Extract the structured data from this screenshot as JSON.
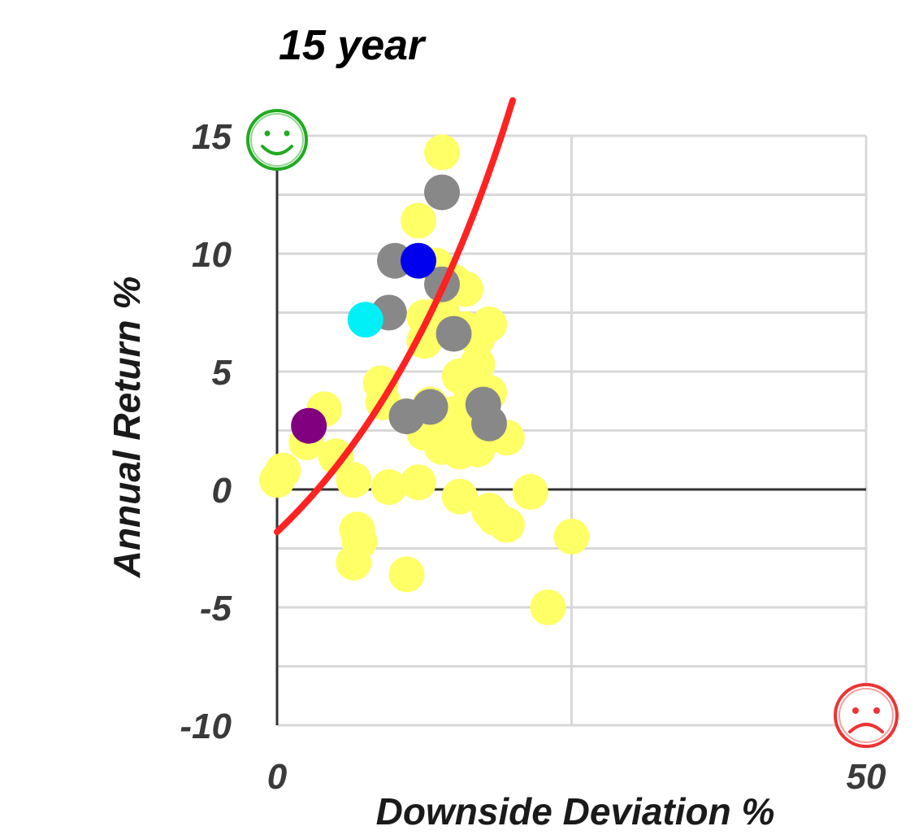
{
  "chart_data": {
    "type": "scatter",
    "title": "15 year",
    "xlabel": "Downside Deviation %",
    "ylabel": "Annual Return %",
    "xlim": [
      0,
      50
    ],
    "ylim": [
      -10,
      15
    ],
    "x_ticks": [
      "0",
      "50"
    ],
    "y_ticks": [
      "15",
      "10",
      "5",
      "0",
      "-5",
      "-10"
    ],
    "grid": true,
    "legend": "none",
    "icons": {
      "top_left": "smiley-face-icon",
      "bottom_right": "frowny-face-icon"
    },
    "colors": {
      "others": "#ffff66",
      "comparison": "#888888",
      "highlight_blue": "#0000ee",
      "highlight_cyan": "#00f0f8",
      "highlight_purple": "#800080",
      "curve": "#ff2222",
      "smiley": "#22aa22",
      "frowny": "#ee3333"
    },
    "series": [
      {
        "color_key": "others",
        "points": [
          [
            14,
            14.3
          ],
          [
            12,
            11.4
          ],
          [
            13.5,
            9.5
          ],
          [
            15,
            8.8
          ],
          [
            16,
            8.5
          ],
          [
            14,
            7.5
          ],
          [
            12.5,
            7.3
          ],
          [
            16,
            6.8
          ],
          [
            18,
            7
          ],
          [
            17,
            6.4
          ],
          [
            12.5,
            6.3
          ],
          [
            17,
            5.3
          ],
          [
            15.5,
            4.8
          ],
          [
            8.8,
            4.5
          ],
          [
            16.5,
            4.2
          ],
          [
            18,
            4.1
          ],
          [
            9,
            3.7
          ],
          [
            13,
            3.6
          ],
          [
            4,
            3.4
          ],
          [
            15,
            3.2
          ],
          [
            11,
            3.1
          ],
          [
            13,
            2.9
          ],
          [
            17,
            2.6
          ],
          [
            12.5,
            2.4
          ],
          [
            15,
            2.5
          ],
          [
            16,
            2.0
          ],
          [
            19.5,
            2.2
          ],
          [
            14,
            1.8
          ],
          [
            15.5,
            1.6
          ],
          [
            17,
            1.7
          ],
          [
            2.5,
            2.0
          ],
          [
            5,
            1.4
          ],
          [
            0.5,
            0.8
          ],
          [
            0,
            0.4
          ],
          [
            6.5,
            0.4
          ],
          [
            9.5,
            0.1
          ],
          [
            12,
            0.3
          ],
          [
            15.5,
            -0.3
          ],
          [
            18,
            -0.9
          ],
          [
            18.5,
            -1.2
          ],
          [
            19.5,
            -1.5
          ],
          [
            21.5,
            -0.1
          ],
          [
            6.8,
            -1.7
          ],
          [
            7,
            -2.2
          ],
          [
            6.5,
            -3.1
          ],
          [
            11,
            -3.6
          ],
          [
            25,
            -2.0
          ],
          [
            23,
            -5.0
          ]
        ]
      },
      {
        "color_key": "comparison",
        "points": [
          [
            14,
            12.6
          ],
          [
            10,
            9.7
          ],
          [
            14,
            8.7
          ],
          [
            9.5,
            7.5
          ],
          [
            15,
            6.6
          ],
          [
            13,
            3.5
          ],
          [
            11,
            3.1
          ],
          [
            17.5,
            3.6
          ],
          [
            18,
            2.8
          ]
        ]
      },
      {
        "color_key": "highlight_blue",
        "points": [
          [
            12,
            9.7
          ]
        ]
      },
      {
        "color_key": "highlight_cyan",
        "points": [
          [
            7.5,
            7.2
          ]
        ]
      },
      {
        "color_key": "highlight_purple",
        "points": [
          [
            2.7,
            2.7
          ]
        ]
      }
    ],
    "curve": {
      "color_key": "curve",
      "points": [
        [
          0,
          -1.8
        ],
        [
          20,
          16.5
        ]
      ]
    }
  }
}
